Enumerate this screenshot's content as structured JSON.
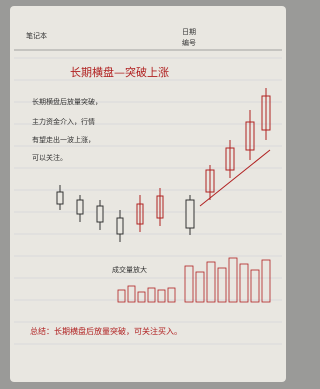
{
  "header": {
    "brand": "笔记本",
    "date_label": "日期",
    "no_label": "编号"
  },
  "note": {
    "title": "长期横盘—突破上涨",
    "body": [
      "长期横盘后放量突破，",
      "主力资金介入，行情",
      "有望走出一波上涨，",
      "可以关注。"
    ],
    "volume_label": "成交量放大",
    "summary": "总结：长期横盘后放量突破，可关注买入。"
  }
}
